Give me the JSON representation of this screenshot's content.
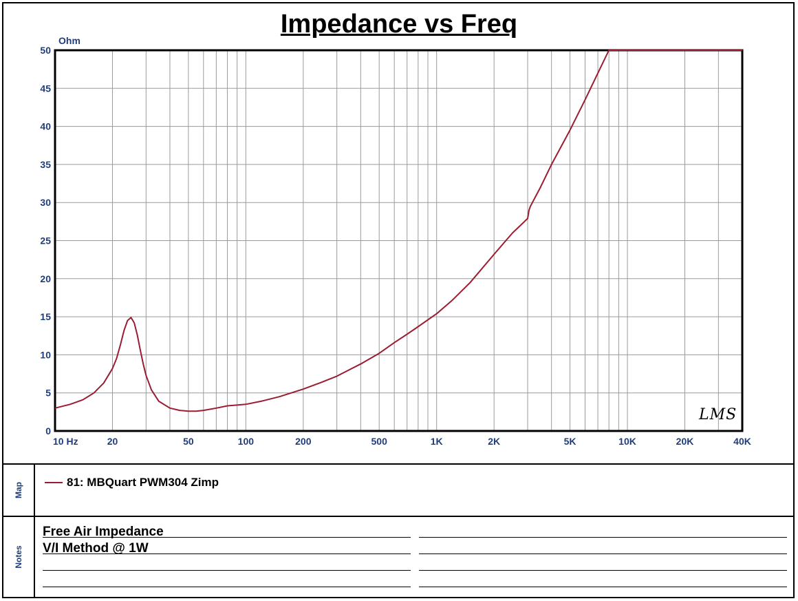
{
  "title": "Impedance vs Freq",
  "chart_data": {
    "type": "line",
    "title": "Impedance vs Freq",
    "ylabel": "Ohm",
    "xlabel": "",
    "x_scale": "log",
    "xlim": [
      10,
      40000
    ],
    "ylim": [
      0,
      50
    ],
    "grid": true,
    "y_ticks": [
      "0",
      "5",
      "10",
      "15",
      "20",
      "25",
      "30",
      "35",
      "40",
      "45",
      "50"
    ],
    "y_tick_values": [
      0,
      5,
      10,
      15,
      20,
      25,
      30,
      35,
      40,
      45,
      50
    ],
    "x_ticks": [
      "10 Hz",
      "20",
      "50",
      "100",
      "200",
      "500",
      "1K",
      "2K",
      "5K",
      "10K",
      "20K",
      "40K"
    ],
    "x_tick_values": [
      10,
      20,
      50,
      100,
      200,
      500,
      1000,
      2000,
      5000,
      10000,
      20000,
      40000
    ],
    "series": [
      {
        "name": "81: MBQuart PWM304 Zimp",
        "color": "#9b1b30",
        "x": [
          10,
          12,
          14,
          16,
          18,
          20,
          21,
          22,
          23,
          24,
          25,
          26,
          27,
          28,
          29,
          30,
          32,
          35,
          40,
          45,
          50,
          55,
          60,
          70,
          80,
          90,
          100,
          120,
          150,
          200,
          250,
          300,
          400,
          500,
          600,
          700,
          800,
          1000,
          1200,
          1500,
          2000,
          2500,
          3000,
          3050,
          3100,
          3500,
          4000,
          5000,
          6000,
          7000,
          8000,
          10000,
          20000,
          40000
        ],
        "y": [
          3.0,
          3.5,
          4.1,
          5.0,
          6.3,
          8.2,
          9.5,
          11.3,
          13.2,
          14.5,
          14.9,
          14.2,
          12.6,
          10.6,
          8.8,
          7.3,
          5.4,
          3.9,
          3.0,
          2.7,
          2.6,
          2.6,
          2.7,
          3.0,
          3.3,
          3.4,
          3.5,
          3.9,
          4.5,
          5.5,
          6.4,
          7.2,
          8.8,
          10.2,
          11.6,
          12.7,
          13.7,
          15.4,
          17.1,
          19.5,
          23.2,
          26.0,
          27.9,
          29.0,
          29.5,
          32.0,
          35.0,
          39.5,
          43.5,
          47.0,
          50.0,
          50.0,
          50.0,
          50.0
        ]
      }
    ]
  },
  "map_panel": {
    "side_label": "Map",
    "legend_label": "81: MBQuart PWM304 Zimp"
  },
  "notes_panel": {
    "side_label": "Notes",
    "line1": "Free Air Impedance",
    "line2": "V/I Method @ 1W"
  },
  "logo_text": "LMS",
  "colors": {
    "trace": "#9b1b30",
    "axis_labels": "#1f3d7a",
    "grid": "#9a9a9a"
  }
}
